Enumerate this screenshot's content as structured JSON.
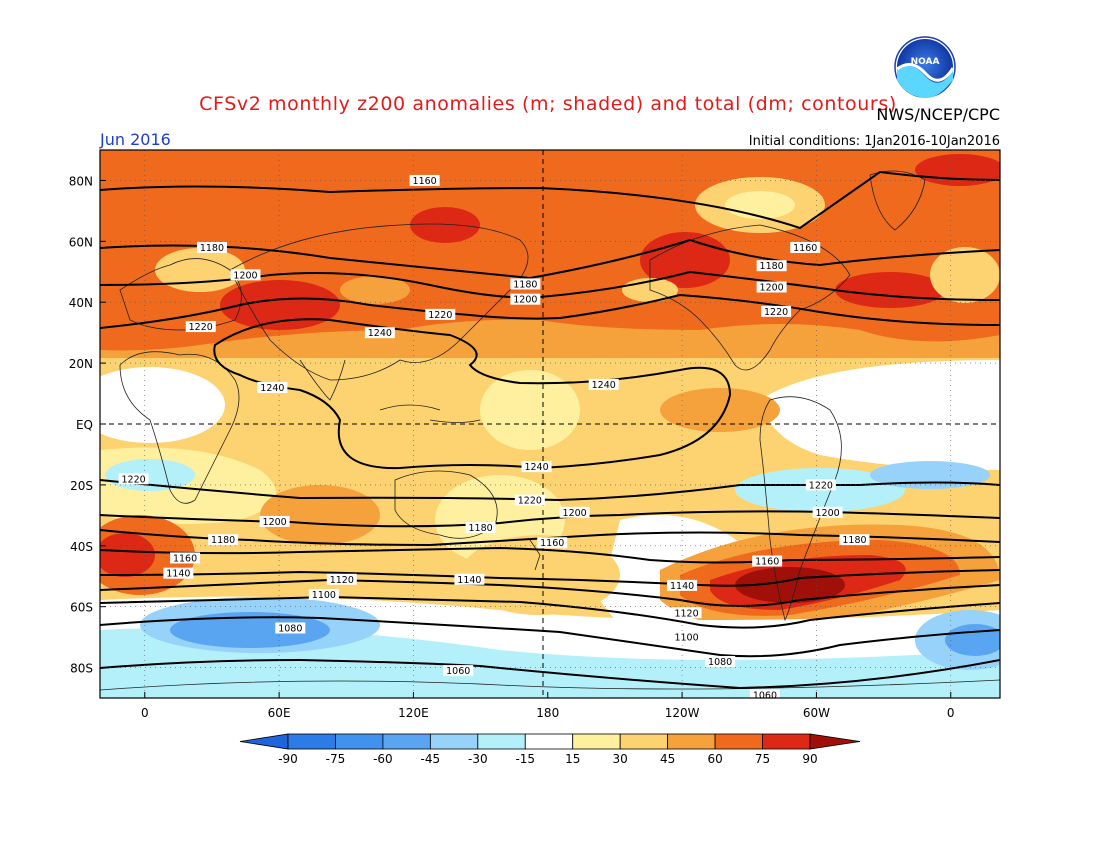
{
  "title": "CFSv2 monthly z200 anomalies (m; shaded) and total (dm; contours)",
  "agency": "NWS/NCEP/CPC",
  "logo_text": "NOAA",
  "month": "Jun 2016",
  "initial_conditions": "Initial conditions: 1Jan2016-10Jan2016",
  "lat_labels": [
    "80N",
    "60N",
    "40N",
    "20N",
    "EQ",
    "20S",
    "40S",
    "60S",
    "80S"
  ],
  "lon_labels": [
    "0",
    "60E",
    "120E",
    "180",
    "120W",
    "60W",
    "0"
  ],
  "colorbar": {
    "levels": [
      "-90",
      "-75",
      "-60",
      "-45",
      "-30",
      "-15",
      "15",
      "30",
      "45",
      "60",
      "75",
      "90"
    ],
    "colors": [
      "#1e64dc",
      "#2d7be6",
      "#4191ee",
      "#5aa5f2",
      "#96d2fa",
      "#b4f0fa",
      "#ffffff",
      "#fff0a0",
      "#fdd270",
      "#f5a23c",
      "#f06a1e",
      "#dc2814",
      "#a01008"
    ]
  },
  "contour_labels": [
    {
      "text": "1160",
      "lon": -65,
      "lat": 58
    },
    {
      "text": "1160",
      "lon": 125,
      "lat": 80
    },
    {
      "text": "1180",
      "lon": 30,
      "lat": 58
    },
    {
      "text": "1180",
      "lon": 170,
      "lat": 46
    },
    {
      "text": "1180",
      "lon": -80,
      "lat": 52
    },
    {
      "text": "1200",
      "lon": 45,
      "lat": 49
    },
    {
      "text": "1200",
      "lon": 170,
      "lat": 41
    },
    {
      "text": "1200",
      "lon": -80,
      "lat": 45
    },
    {
      "text": "1220",
      "lon": 25,
      "lat": 32
    },
    {
      "text": "1220",
      "lon": 132,
      "lat": 36
    },
    {
      "text": "1220",
      "lon": -78,
      "lat": 37
    },
    {
      "text": "1240",
      "lon": 105,
      "lat": 30
    },
    {
      "text": "1240",
      "lon": 57,
      "lat": 12
    },
    {
      "text": "1240",
      "lon": -155,
      "lat": 13
    },
    {
      "text": "1240",
      "lon": 175,
      "lat": -14
    },
    {
      "text": "1220",
      "lon": -5,
      "lat": -18
    },
    {
      "text": "1220",
      "lon": 172,
      "lat": -25
    },
    {
      "text": "1220",
      "lon": -58,
      "lat": -20
    },
    {
      "text": "1200",
      "lon": 58,
      "lat": -32
    },
    {
      "text": "1200",
      "lon": -168,
      "lat": -29
    },
    {
      "text": "1200",
      "lon": -55,
      "lat": -29
    },
    {
      "text": "1180",
      "lon": 35,
      "lat": -38
    },
    {
      "text": "1180",
      "lon": 150,
      "lat": -34
    },
    {
      "text": "1180",
      "lon": -43,
      "lat": -38
    },
    {
      "text": "1160",
      "lon": 18,
      "lat": -44
    },
    {
      "text": "1160",
      "lon": 182,
      "lat": -39
    },
    {
      "text": "1160",
      "lon": -82,
      "lat": -45
    },
    {
      "text": "1140",
      "lon": 15,
      "lat": -49
    },
    {
      "text": "1140",
      "lon": 145,
      "lat": -51
    },
    {
      "text": "1140",
      "lon": -120,
      "lat": -53
    },
    {
      "text": "1120",
      "lon": 88,
      "lat": -51
    },
    {
      "text": "1120",
      "lon": -118,
      "lat": -62
    },
    {
      "text": "1100",
      "lon": 80,
      "lat": -56
    },
    {
      "text": "1100",
      "lon": -118,
      "lat": -70
    },
    {
      "text": "1080",
      "lon": 65,
      "lat": -67
    },
    {
      "text": "1080",
      "lon": -103,
      "lat": -78
    },
    {
      "text": "1060",
      "lon": 140,
      "lat": -81
    },
    {
      "text": "1060",
      "lon": -83,
      "lat": -89
    }
  ]
}
